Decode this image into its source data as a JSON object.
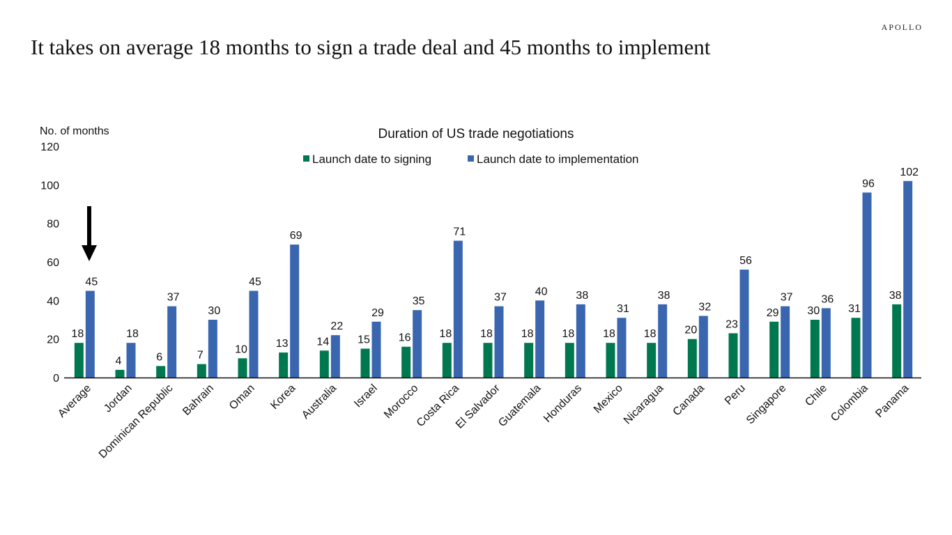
{
  "page": {
    "brand": "APOLLO",
    "headline": "It takes on average 18 months to sign a trade deal and 45 months to implement"
  },
  "chart_data": {
    "type": "bar",
    "title": "Duration of US trade negotiations",
    "ylabel": "No. of months",
    "xlabel": "",
    "ylim": [
      0,
      120
    ],
    "yticks": [
      0,
      20,
      40,
      60,
      80,
      100,
      120
    ],
    "grid": false,
    "legend_position": "top-center",
    "categories": [
      "Average",
      "Jordan",
      "Dominican Republic",
      "Bahrain",
      "Oman",
      "Korea",
      "Australia",
      "Israel",
      "Morocco",
      "Costa Rica",
      "El Salvador",
      "Guatemala",
      "Honduras",
      "Mexico",
      "Nicaragua",
      "Canada",
      "Peru",
      "Singapore",
      "Chile",
      "Colombia",
      "Panama"
    ],
    "series": [
      {
        "name": "Launch date to signing",
        "color": "#00784f",
        "values": [
          18,
          4,
          6,
          7,
          10,
          13,
          14,
          15,
          16,
          18,
          18,
          18,
          18,
          18,
          18,
          20,
          23,
          29,
          30,
          31,
          38
        ]
      },
      {
        "name": "Launch date to implementation",
        "color": "#3a66b0",
        "values": [
          45,
          18,
          37,
          30,
          45,
          69,
          22,
          29,
          35,
          71,
          37,
          40,
          38,
          31,
          38,
          32,
          56,
          37,
          36,
          96,
          102
        ]
      }
    ],
    "annotations": [
      {
        "type": "arrow",
        "direction": "down",
        "target_category": "Average",
        "icon": "down-arrow-icon"
      }
    ]
  }
}
